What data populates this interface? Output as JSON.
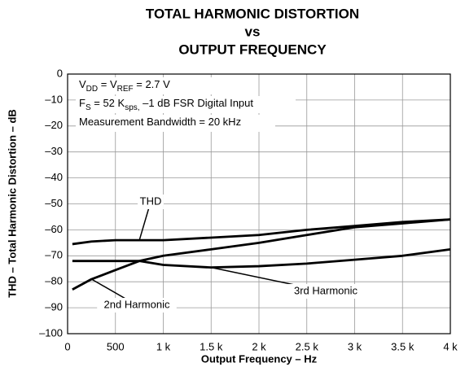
{
  "chart_data": {
    "type": "line",
    "title": [
      "TOTAL HARMONIC DISTORTION",
      "vs",
      "OUTPUT FREQUENCY"
    ],
    "x_label": "Output Frequency – Hz",
    "y_label": "THD – Total Harmonic Distortion – dB",
    "notes": [
      [
        {
          "text": "V"
        },
        {
          "text": "DD",
          "sub": true
        },
        {
          "text": " = V"
        },
        {
          "text": "REF",
          "sub": true
        },
        {
          "text": " = 2.7 V"
        }
      ],
      [
        {
          "text": "F"
        },
        {
          "text": "S",
          "sub": true
        },
        {
          "text": " = 52 K"
        },
        {
          "text": "sps,",
          "sub": true
        },
        {
          "text": "  –1 dB FSR Digital Input"
        }
      ],
      [
        {
          "text": "Measurement Bandwidth = 20 kHz"
        }
      ]
    ],
    "xlim": [
      0,
      4000
    ],
    "ylim": [
      -100,
      0
    ],
    "xticks": [
      0,
      500,
      {
        "value": 1000,
        "label": "1 k"
      },
      {
        "value": 1500,
        "label": "1.5 k"
      },
      {
        "value": 2000,
        "label": "2 k"
      },
      {
        "value": 2500,
        "label": "2.5 k"
      },
      {
        "value": 3000,
        "label": "3 k"
      },
      {
        "value": 3500,
        "label": "3.5 k"
      },
      {
        "value": 4000,
        "label": "4 k"
      }
    ],
    "yticks": [
      0,
      {
        "value": -10,
        "label": "–10"
      },
      {
        "value": -20,
        "label": "–20"
      },
      {
        "value": -30,
        "label": "–30"
      },
      {
        "value": -40,
        "label": "–40"
      },
      {
        "value": -50,
        "label": "–50"
      },
      {
        "value": -60,
        "label": "–60"
      },
      {
        "value": -70,
        "label": "–70"
      },
      {
        "value": -80,
        "label": "–80"
      },
      {
        "value": -90,
        "label": "–90"
      },
      {
        "value": -100,
        "label": "–100"
      }
    ],
    "grid": true,
    "x": [
      50,
      250,
      500,
      750,
      1000,
      1500,
      2000,
      2500,
      3000,
      3500,
      4000
    ],
    "series": [
      {
        "name": "THD",
        "color": "#000000",
        "values": [
          -65.5,
          -64.5,
          -64,
          -64,
          -64,
          -63,
          -62,
          -60,
          -58.5,
          -57,
          -56
        ]
      },
      {
        "name": "2nd Harmonic",
        "color": "#000000",
        "values": [
          -83,
          -79,
          -75.5,
          -72,
          -70,
          -67.5,
          -65,
          -62,
          -59,
          -57.5,
          -56
        ]
      },
      {
        "name": "3rd Harmonic",
        "color": "#000000",
        "values": [
          -72,
          -72,
          -72,
          -72,
          -73.5,
          -74.5,
          -74,
          -73,
          -71.5,
          -70,
          -67.5
        ]
      }
    ]
  }
}
